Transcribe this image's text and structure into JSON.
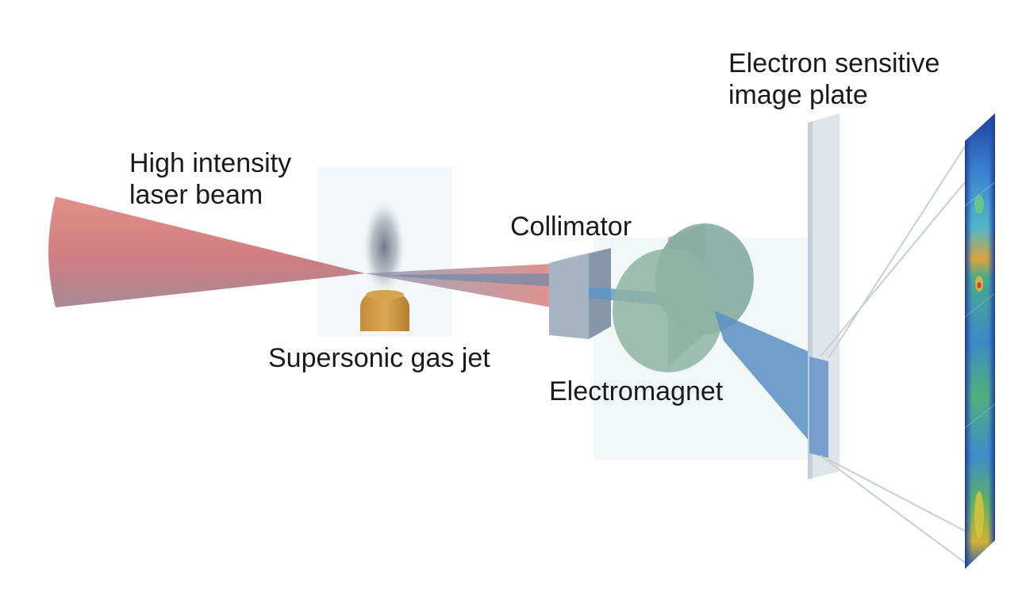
{
  "labels": {
    "laser_line1": "High intensity",
    "laser_line2": "laser beam",
    "gas_jet": "Supersonic gas jet",
    "collimator": "Collimator",
    "electromagnet": "Electromagnet",
    "plate_line1": "Electron sensitive",
    "plate_line2": "image plate"
  },
  "colors": {
    "laser": "#e08c85",
    "electron_beam": "#5a8fc4",
    "gas_jet": "#c7953f",
    "collimator": "#a7b6c6",
    "magnet": "#8fb3a4",
    "plate": "#dde4ea",
    "background_panel": "#f3f7f8"
  }
}
